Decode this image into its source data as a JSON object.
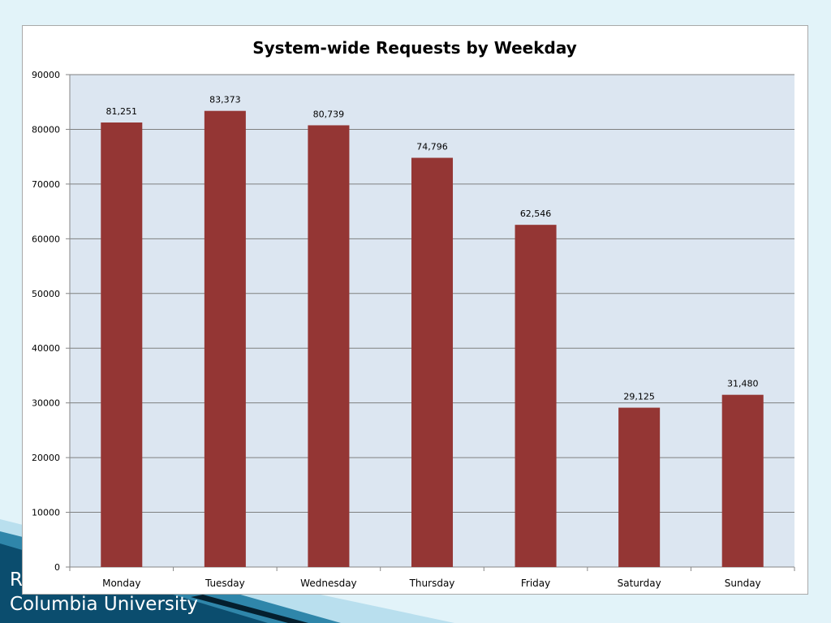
{
  "slide": {
    "footer_line1": "R",
    "footer_line2": "Columbia University"
  },
  "colors": {
    "bar": "#943634",
    "plot_bg": "#dce6f1",
    "gridline": "#7f8080",
    "slide_bg": "#e2f3f9",
    "accent_dark": "#0b4d6e"
  },
  "chart_data": {
    "type": "bar",
    "title": "System-wide Requests by Weekday",
    "xlabel": "",
    "ylabel": "",
    "categories": [
      "Monday",
      "Tuesday",
      "Wednesday",
      "Thursday",
      "Friday",
      "Saturday",
      "Sunday"
    ],
    "values": [
      81251,
      83373,
      80739,
      74796,
      62546,
      29125,
      31480
    ],
    "data_labels": [
      "81,251",
      "83,373",
      "80,739",
      "74,796",
      "62,546",
      "29,125",
      "31,480"
    ],
    "ylim": [
      0,
      90000
    ],
    "yticks": [
      0,
      10000,
      20000,
      30000,
      40000,
      50000,
      60000,
      70000,
      80000,
      90000
    ],
    "ytick_labels": [
      "0",
      "10000",
      "20000",
      "30000",
      "40000",
      "50000",
      "60000",
      "70000",
      "80000",
      "90000"
    ],
    "grid": true,
    "legend": "none"
  }
}
